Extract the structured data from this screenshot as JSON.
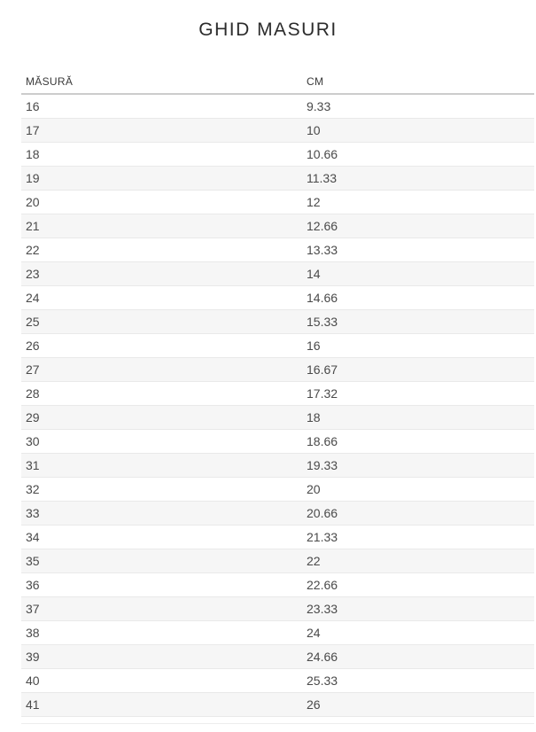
{
  "page": {
    "title": "GHID MASURI"
  },
  "table": {
    "columns": [
      "MĂSURĂ",
      "CM"
    ],
    "rows": [
      [
        "16",
        "9.33"
      ],
      [
        "17",
        "10"
      ],
      [
        "18",
        "10.66"
      ],
      [
        "19",
        "11.33"
      ],
      [
        "20",
        "12"
      ],
      [
        "21",
        "12.66"
      ],
      [
        "22",
        "13.33"
      ],
      [
        "23",
        "14"
      ],
      [
        "24",
        "14.66"
      ],
      [
        "25",
        "15.33"
      ],
      [
        "26",
        "16"
      ],
      [
        "27",
        "16.67"
      ],
      [
        "28",
        "17.32"
      ],
      [
        "29",
        "18"
      ],
      [
        "30",
        "18.66"
      ],
      [
        "31",
        "19.33"
      ],
      [
        "32",
        "20"
      ],
      [
        "33",
        "20.66"
      ],
      [
        "34",
        "21.33"
      ],
      [
        "35",
        "22"
      ],
      [
        "36",
        "22.66"
      ],
      [
        "37",
        "23.33"
      ],
      [
        "38",
        "24"
      ],
      [
        "39",
        "24.66"
      ],
      [
        "40",
        "25.33"
      ],
      [
        "41",
        "26"
      ]
    ]
  },
  "colors": {
    "stripe": "#f6f6f6",
    "row_border": "#e9e9e9",
    "header_border": "#cccccc",
    "cell_text": "#4a4a4a",
    "header_text": "#3a3a3a",
    "title_text": "#2b2b2b"
  }
}
